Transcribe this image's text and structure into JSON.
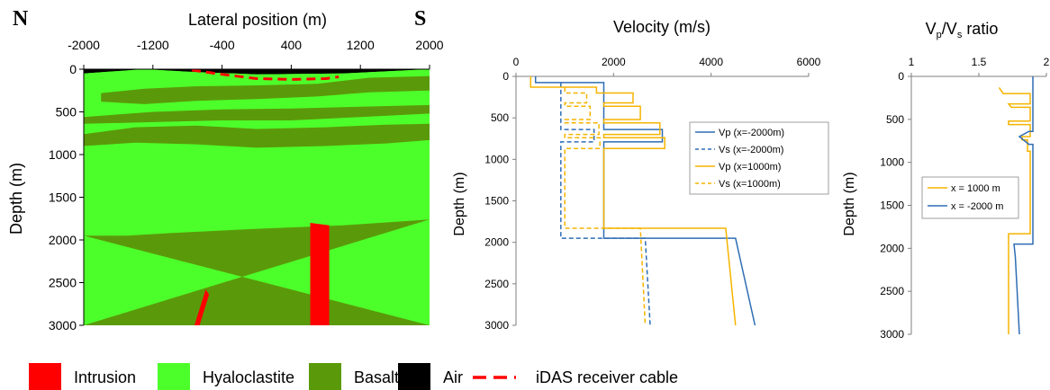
{
  "chart_data": [
    {
      "type": "geologic-section",
      "title": "Lateral position (m)",
      "ylabel": "Depth (m)",
      "left_label": "N",
      "right_label": "S",
      "xlim": [
        -2000,
        2000
      ],
      "ylim": [
        0,
        3000
      ],
      "xticks": [
        "-2000",
        "-1200",
        "-400",
        "400",
        "1200",
        "2000"
      ],
      "xtick_values": [
        -2000,
        -1200,
        -400,
        400,
        1200,
        2000
      ],
      "yticks": [
        "0",
        "500",
        "1000",
        "1500",
        "2000",
        "2500",
        "3000"
      ],
      "ytick_values": [
        0,
        500,
        1000,
        1500,
        2000,
        2500,
        3000
      ],
      "colors": {
        "air": "#000000",
        "hyaloclastite": "#4dff2a",
        "basalt": "#5a9a0a",
        "intrusion": "#ff0000",
        "cable": "#ff0000"
      },
      "air_bottom_depth": 60,
      "layers": [
        {
          "unit": "Air",
          "top": [
            [
              -2000,
              0
            ],
            [
              2000,
              0
            ]
          ],
          "bottom": [
            [
              -2000,
              50
            ],
            [
              -1300,
              -10
            ],
            [
              -800,
              30
            ],
            [
              0,
              60
            ],
            [
              1000,
              50
            ],
            [
              2000,
              0
            ]
          ]
        },
        {
          "unit": "Hyaloclastite",
          "top": [
            [
              -2000,
              50
            ],
            [
              -1300,
              -10
            ],
            [
              -800,
              30
            ],
            [
              0,
              60
            ],
            [
              1000,
              50
            ],
            [
              2000,
              0
            ]
          ],
          "bottom": [
            [
              -2000,
              1950
            ],
            [
              -1500,
              1950
            ],
            [
              -1000,
              1920
            ],
            [
              0,
              1870
            ],
            [
              1000,
              1830
            ],
            [
              2000,
              1760
            ]
          ]
        },
        {
          "unit": "Basalt",
          "top": [
            [
              -2000,
              1950
            ],
            [
              -1500,
              1950
            ],
            [
              -1000,
              1920
            ],
            [
              0,
              1870
            ],
            [
              1000,
              1830
            ],
            [
              2000,
              1760
            ]
          ],
          "bottom": [
            [
              -2000,
              3000
            ],
            [
              2000,
              3000
            ]
          ]
        },
        {
          "unit": "Basalt",
          "top": [
            [
              -1800,
              280
            ],
            [
              -1300,
              230
            ],
            [
              -700,
              200
            ],
            [
              0,
              190
            ],
            [
              700,
              170
            ],
            [
              1300,
              100
            ],
            [
              2000,
              80
            ]
          ],
          "bottom": [
            [
              2000,
              250
            ],
            [
              1300,
              270
            ],
            [
              700,
              320
            ],
            [
              0,
              350
            ],
            [
              -700,
              370
            ],
            [
              -1300,
              410
            ],
            [
              -1800,
              380
            ]
          ]
        },
        {
          "unit": "Basalt",
          "top": [
            [
              -2000,
              560
            ],
            [
              -1200,
              500
            ],
            [
              -400,
              470
            ],
            [
              400,
              460
            ],
            [
              1200,
              440
            ],
            [
              2000,
              420
            ]
          ],
          "bottom": [
            [
              2000,
              520
            ],
            [
              1200,
              560
            ],
            [
              400,
              600
            ],
            [
              -400,
              600
            ],
            [
              -1200,
              620
            ],
            [
              -2000,
              640
            ]
          ]
        },
        {
          "unit": "Basalt",
          "top": [
            [
              -2000,
              760
            ],
            [
              -1400,
              680
            ],
            [
              -700,
              660
            ],
            [
              0,
              700
            ],
            [
              800,
              680
            ],
            [
              1500,
              650
            ],
            [
              2000,
              640
            ]
          ],
          "bottom": [
            [
              2000,
              830
            ],
            [
              1500,
              870
            ],
            [
              800,
              900
            ],
            [
              0,
              920
            ],
            [
              -700,
              880
            ],
            [
              -1400,
              860
            ],
            [
              -2000,
              900
            ]
          ]
        }
      ],
      "intrusions": [
        {
          "polygon": [
            [
              620,
              3000
            ],
            [
              620,
              1800
            ],
            [
              840,
              1830
            ],
            [
              840,
              3000
            ]
          ]
        },
        {
          "polygon": [
            [
              -720,
              3000
            ],
            [
              -590,
              2580
            ],
            [
              -550,
              2640
            ],
            [
              -660,
              3000
            ]
          ]
        }
      ],
      "cable": [
        [
          -750,
          10
        ],
        [
          -400,
          60
        ],
        [
          0,
          110
        ],
        [
          400,
          120
        ],
        [
          800,
          110
        ],
        [
          950,
          90
        ]
      ],
      "legend": [
        {
          "label": "Intrusion",
          "swatch": "intrusion"
        },
        {
          "label": "Hyaloclastite",
          "swatch": "hyaloclastite"
        },
        {
          "label": "Basalt",
          "swatch": "basalt"
        },
        {
          "label": "Air",
          "swatch": "air"
        },
        {
          "label": "iDAS receiver cable",
          "swatch": "cable"
        }
      ]
    },
    {
      "type": "line",
      "title": "Velocity (m/s)",
      "ylabel": "Depth (m)",
      "xlim": [
        0,
        6000
      ],
      "ylim": [
        0,
        3000
      ],
      "xticks": [
        "0",
        "2000",
        "4000",
        "6000"
      ],
      "xtick_values": [
        0,
        2000,
        4000,
        6000
      ],
      "yticks": [
        "0",
        "500",
        "1000",
        "1500",
        "2000",
        "2500",
        "3000"
      ],
      "ytick_values": [
        0,
        500,
        1000,
        1500,
        2000,
        2500,
        3000
      ],
      "legend_position": "right",
      "series": [
        {
          "name": "Vp (x=-2000m)",
          "color": "#2e6db4",
          "dash": false,
          "points": [
            [
              400,
              0
            ],
            [
              400,
              75
            ],
            [
              1800,
              75
            ],
            [
              1800,
              640
            ],
            [
              3000,
              640
            ],
            [
              3000,
              790
            ],
            [
              1800,
              790
            ],
            [
              1800,
              1950
            ],
            [
              4500,
              1950
            ],
            [
              4900,
              3000
            ]
          ]
        },
        {
          "name": "Vs (x=-2000m)",
          "color": "#2e6db4",
          "dash": true,
          "points": [
            [
              920,
              75
            ],
            [
              920,
              640
            ],
            [
              1600,
              640
            ],
            [
              1600,
              790
            ],
            [
              920,
              790
            ],
            [
              920,
              1950
            ],
            [
              2650,
              1950
            ],
            [
              2750,
              3000
            ]
          ]
        },
        {
          "name": "Vp (x=1000m)",
          "color": "#f5b400",
          "dash": false,
          "points": [
            [
              300,
              0
            ],
            [
              300,
              130
            ],
            [
              1650,
              130
            ],
            [
              1650,
              200
            ],
            [
              2400,
              200
            ],
            [
              2400,
              320
            ],
            [
              1800,
              320
            ],
            [
              1800,
              360
            ],
            [
              2550,
              360
            ],
            [
              2550,
              520
            ],
            [
              1800,
              520
            ],
            [
              1800,
              560
            ],
            [
              2950,
              560
            ],
            [
              2950,
              700
            ],
            [
              1800,
              700
            ],
            [
              1800,
              740
            ],
            [
              3050,
              740
            ],
            [
              3050,
              870
            ],
            [
              1800,
              870
            ],
            [
              1800,
              1830
            ],
            [
              4300,
              1830
            ],
            [
              4500,
              3000
            ]
          ]
        },
        {
          "name": "Vs (x=1000m)",
          "color": "#f5b400",
          "dash": true,
          "points": [
            [
              1000,
              130
            ],
            [
              1000,
              200
            ],
            [
              1450,
              200
            ],
            [
              1450,
              320
            ],
            [
              1000,
              320
            ],
            [
              1000,
              360
            ],
            [
              1520,
              360
            ],
            [
              1520,
              520
            ],
            [
              1000,
              520
            ],
            [
              1000,
              560
            ],
            [
              1700,
              560
            ],
            [
              1700,
              700
            ],
            [
              1000,
              700
            ],
            [
              1000,
              740
            ],
            [
              1720,
              740
            ],
            [
              1720,
              870
            ],
            [
              1000,
              870
            ],
            [
              1000,
              1830
            ],
            [
              2550,
              1830
            ],
            [
              2650,
              3000
            ]
          ]
        }
      ]
    },
    {
      "type": "line",
      "title_main": "V",
      "title_sub1": "p",
      "title_sep": "/V",
      "title_sub2": "s",
      "title_tail": " ratio",
      "ylabel": "Depth (m)",
      "xlim": [
        1,
        2
      ],
      "ylim": [
        0,
        3000
      ],
      "xticks": [
        "1",
        "1.5",
        "2"
      ],
      "xtick_values": [
        1,
        1.5,
        2
      ],
      "yticks": [
        "0",
        "500",
        "1000",
        "1500",
        "2000",
        "2500",
        "3000"
      ],
      "ytick_values": [
        0,
        500,
        1000,
        1500,
        2000,
        2500,
        3000
      ],
      "legend_position": "left",
      "series": [
        {
          "name": "x = 1000 m",
          "color": "#f5b400",
          "dash": false,
          "points": [
            [
              1.65,
              130
            ],
            [
              1.68,
              200
            ],
            [
              1.88,
              200
            ],
            [
              1.88,
              320
            ],
            [
              1.72,
              320
            ],
            [
              1.74,
              360
            ],
            [
              1.88,
              360
            ],
            [
              1.88,
              520
            ],
            [
              1.72,
              520
            ],
            [
              1.72,
              560
            ],
            [
              1.88,
              560
            ],
            [
              1.88,
              700
            ],
            [
              1.82,
              700
            ],
            [
              1.82,
              740
            ],
            [
              1.86,
              740
            ],
            [
              1.86,
              870
            ],
            [
              1.88,
              870
            ],
            [
              1.88,
              1830
            ],
            [
              1.72,
              1830
            ],
            [
              1.72,
              3000
            ]
          ]
        },
        {
          "name": "x = -2000 m",
          "color": "#2e6db4",
          "dash": false,
          "points": [
            [
              1.9,
              0
            ],
            [
              1.9,
              640
            ],
            [
              1.87,
              640
            ],
            [
              1.8,
              700
            ],
            [
              1.87,
              790
            ],
            [
              1.9,
              790
            ],
            [
              1.9,
              1950
            ],
            [
              1.76,
              1950
            ],
            [
              1.77,
              2100
            ],
            [
              1.8,
              3000
            ]
          ]
        }
      ]
    }
  ]
}
